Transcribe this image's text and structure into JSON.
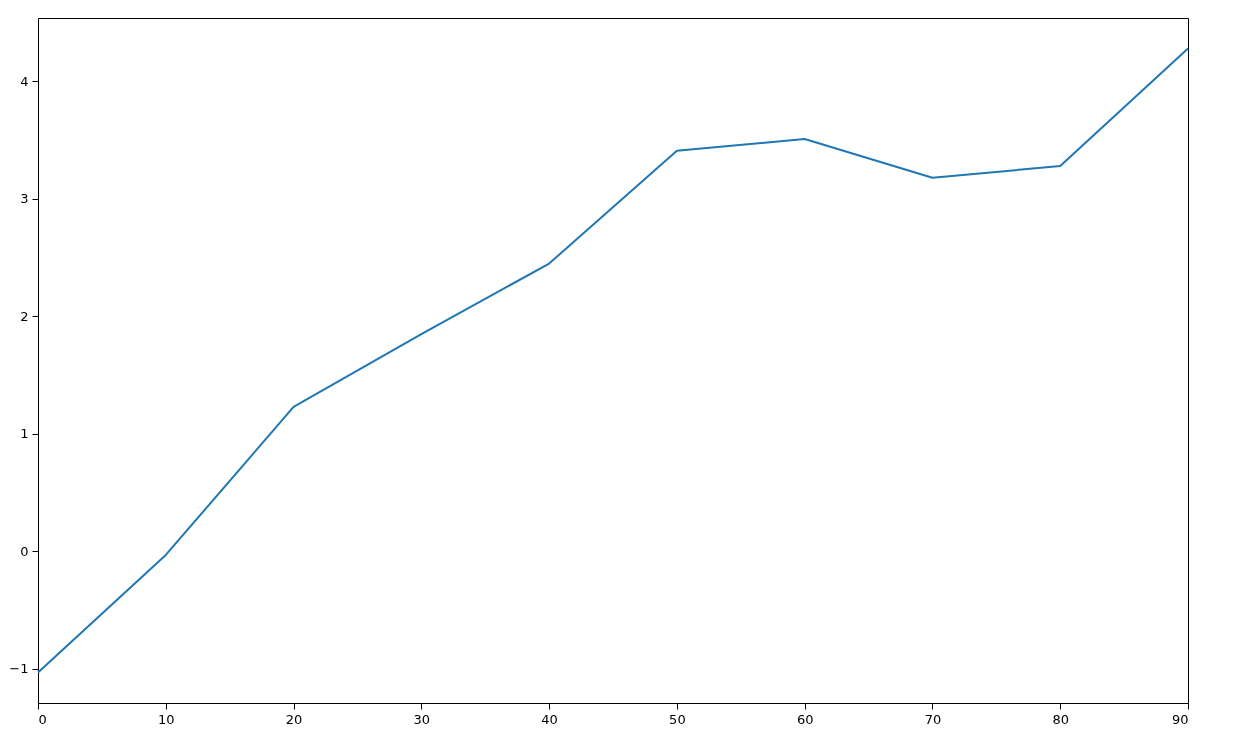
{
  "chart_data": {
    "type": "line",
    "x": [
      0,
      10,
      20,
      30,
      40,
      50,
      60,
      70,
      80,
      90
    ],
    "series": [
      {
        "color": "#1f77b4",
        "values": [
          -1.03,
          -0.03,
          1.23,
          1.85,
          2.45,
          3.41,
          3.51,
          3.18,
          3.28,
          4.28
        ]
      }
    ],
    "xlim": [
      0,
      90
    ],
    "ylim": [
      -1.29,
      4.54
    ],
    "xticks": [
      0,
      10,
      20,
      30,
      40,
      50,
      60,
      70,
      80,
      90
    ],
    "yticks": [
      {
        "value": -1,
        "label": "−1"
      },
      0,
      1,
      2,
      3,
      4
    ],
    "grid": false,
    "marker": "none",
    "line_style": "solid"
  }
}
